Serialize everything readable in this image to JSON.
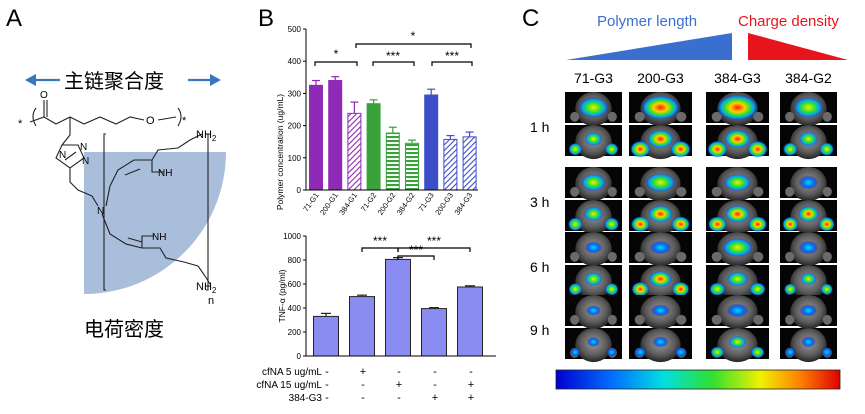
{
  "panel_a": {
    "letter": "A",
    "backbone_label": "主链聚合度",
    "charge_label": "电荷密度",
    "atom_o": "O",
    "atom_o_ring": "O",
    "atom_n1": "N",
    "atom_n2": "N",
    "atom_n3": "N",
    "atom_n_branch": "N",
    "atom_nh_upper": "NH",
    "atom_nh_lower": "NH",
    "amine_top": "NH",
    "amine_top_sub": "2",
    "amine_bottom": "NH",
    "amine_bottom_sub": "2",
    "star_left": "*",
    "star_right": "*",
    "repeat_n": "n",
    "shade_color": "#a9bedb"
  },
  "panel_b": {
    "letter": "B",
    "significance": "***",
    "significance_single": "*",
    "top_chart": {
      "type": "bar",
      "ylabel": "Polymer concentration (ug/mL)",
      "ylim": [
        0,
        500
      ],
      "yticks": [
        "0",
        "100",
        "200",
        "300",
        "400",
        "500"
      ],
      "categories": [
        "71-G1",
        "200-G1",
        "384-G1",
        "71-G2",
        "200-G2",
        "384-G2",
        "71-G3",
        "200-G3",
        "384-G3"
      ],
      "values": [
        325,
        340,
        238,
        268,
        177,
        145,
        295,
        157,
        165
      ],
      "errors": [
        15,
        12,
        35,
        12,
        18,
        10,
        18,
        12,
        15
      ],
      "colors": [
        "#8e2ab5",
        "#8e2ab5",
        "#8e2ab5",
        "#3aa23a",
        "#3aa23a",
        "#3aa23a",
        "#3d4fc8",
        "#3d4fc8",
        "#3d4fc8"
      ],
      "hatched": [
        false,
        false,
        true,
        false,
        true,
        true,
        false,
        true,
        true
      ]
    },
    "bottom_chart": {
      "type": "bar",
      "ylabel": "TNF-α (pg/ml)",
      "ylim": [
        0,
        1000
      ],
      "yticks": [
        "0",
        "200",
        "400",
        "600",
        "800",
        "1000"
      ],
      "values": [
        330,
        495,
        805,
        395,
        575
      ],
      "errors": [
        25,
        12,
        15,
        8,
        10
      ],
      "color": "#8a8cf2",
      "conditions": [
        {
          "label": "cfNA 5 ug/mL",
          "marks": [
            "-",
            "+",
            "-",
            "-",
            "-"
          ]
        },
        {
          "label": "cfNA 15 ug/mL",
          "marks": [
            "-",
            "-",
            "+",
            "-",
            "+"
          ]
        },
        {
          "label": "384-G3",
          "marks": [
            "-",
            "-",
            "-",
            "+",
            "+"
          ]
        }
      ]
    }
  },
  "panel_c": {
    "letter": "C",
    "polymer_length_label": "Polymer length",
    "charge_density_label": "Charge density",
    "polymer_color": "#3a6fd0",
    "charge_color": "#e8141c",
    "columns": [
      "71-G3",
      "200-G3",
      "384-G3",
      "384-G2"
    ],
    "timepoints": [
      "1 h",
      "3 h",
      "6 h",
      "9 h"
    ]
  }
}
